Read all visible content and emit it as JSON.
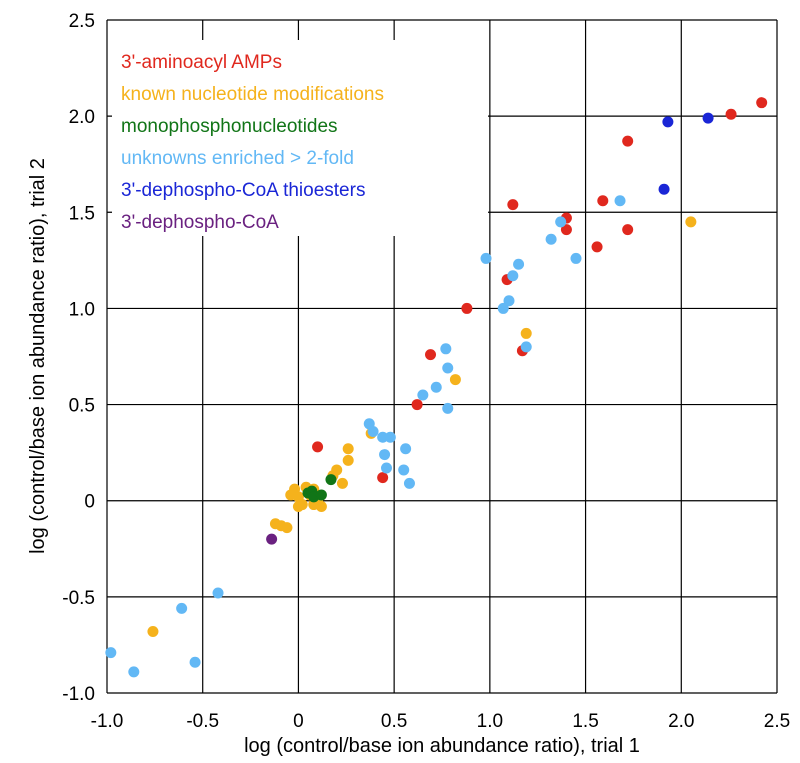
{
  "chart_data": {
    "type": "scatter",
    "title": "",
    "xlabel": "log (control/base ion abundance ratio), trial 1",
    "ylabel": "log (control/base ion abundance ratio), trial 2",
    "xlim": [
      -1.0,
      2.5
    ],
    "ylim": [
      -1.0,
      2.5
    ],
    "xticks": [
      "-1.0",
      "-0.5",
      "0",
      "0.5",
      "1.0",
      "1.5",
      "2.0",
      "2.5"
    ],
    "yticks": [
      "-1.0",
      "-0.5",
      "0",
      "0.5",
      "1.0",
      "1.5",
      "2.0",
      "2.5"
    ],
    "grid": true,
    "legend_position": "top-left",
    "series": [
      {
        "name": "3'-aminoacyl AMPs",
        "color": "#e0281e",
        "points": [
          [
            0.1,
            0.28
          ],
          [
            0.44,
            0.12
          ],
          [
            0.62,
            0.5
          ],
          [
            0.69,
            0.76
          ],
          [
            0.88,
            1.0
          ],
          [
            1.09,
            1.15
          ],
          [
            1.12,
            1.54
          ],
          [
            1.17,
            0.78
          ],
          [
            1.4,
            1.47
          ],
          [
            1.4,
            1.41
          ],
          [
            1.56,
            1.32
          ],
          [
            1.59,
            1.56
          ],
          [
            1.72,
            1.87
          ],
          [
            1.72,
            1.41
          ],
          [
            2.26,
            2.01
          ],
          [
            2.42,
            2.07
          ]
        ]
      },
      {
        "name": "known nucleotide modifications",
        "color": "#f5b21c",
        "points": [
          [
            -0.76,
            -0.68
          ],
          [
            -0.12,
            -0.12
          ],
          [
            -0.09,
            -0.13
          ],
          [
            -0.06,
            -0.14
          ],
          [
            -0.04,
            0.03
          ],
          [
            -0.02,
            0.06
          ],
          [
            0.0,
            0.02
          ],
          [
            0.0,
            -0.03
          ],
          [
            0.02,
            -0.02
          ],
          [
            0.04,
            0.07
          ],
          [
            0.06,
            0.03
          ],
          [
            0.08,
            0.06
          ],
          [
            0.08,
            -0.02
          ],
          [
            0.1,
            0.0
          ],
          [
            0.12,
            -0.03
          ],
          [
            0.18,
            0.13
          ],
          [
            0.2,
            0.16
          ],
          [
            0.23,
            0.09
          ],
          [
            0.26,
            0.21
          ],
          [
            0.26,
            0.27
          ],
          [
            0.38,
            0.35
          ],
          [
            0.82,
            0.63
          ],
          [
            1.19,
            0.87
          ],
          [
            2.05,
            1.45
          ]
        ]
      },
      {
        "name": "monophosphonucleotides",
        "color": "#117517",
        "points": [
          [
            0.05,
            0.04
          ],
          [
            0.07,
            0.05
          ],
          [
            0.08,
            0.02
          ],
          [
            0.12,
            0.03
          ],
          [
            0.17,
            0.11
          ]
        ]
      },
      {
        "name": "unknowns enriched > 2-fold",
        "color": "#62b8f5",
        "points": [
          [
            -0.98,
            -0.79
          ],
          [
            -0.86,
            -0.89
          ],
          [
            -0.61,
            -0.56
          ],
          [
            -0.54,
            -0.84
          ],
          [
            -0.42,
            -0.48
          ],
          [
            0.37,
            0.4
          ],
          [
            0.39,
            0.36
          ],
          [
            0.44,
            0.33
          ],
          [
            0.45,
            0.24
          ],
          [
            0.46,
            0.17
          ],
          [
            0.48,
            0.33
          ],
          [
            0.55,
            0.16
          ],
          [
            0.56,
            0.27
          ],
          [
            0.58,
            0.09
          ],
          [
            0.65,
            0.55
          ],
          [
            0.72,
            0.59
          ],
          [
            0.77,
            0.79
          ],
          [
            0.78,
            0.69
          ],
          [
            0.78,
            0.48
          ],
          [
            0.98,
            1.26
          ],
          [
            1.07,
            1.0
          ],
          [
            1.1,
            1.04
          ],
          [
            1.12,
            1.17
          ],
          [
            1.15,
            1.23
          ],
          [
            1.19,
            0.8
          ],
          [
            1.32,
            1.36
          ],
          [
            1.37,
            1.45
          ],
          [
            1.45,
            1.26
          ],
          [
            1.68,
            1.56
          ]
        ]
      },
      {
        "name": "3'-dephospho-CoA thioesters",
        "color": "#1a26d6",
        "points": [
          [
            1.91,
            1.62
          ],
          [
            1.93,
            1.97
          ],
          [
            2.14,
            1.99
          ]
        ]
      },
      {
        "name": "3'-dephospho-CoA",
        "color": "#6a2180",
        "points": [
          [
            -0.14,
            -0.2
          ]
        ]
      }
    ]
  }
}
